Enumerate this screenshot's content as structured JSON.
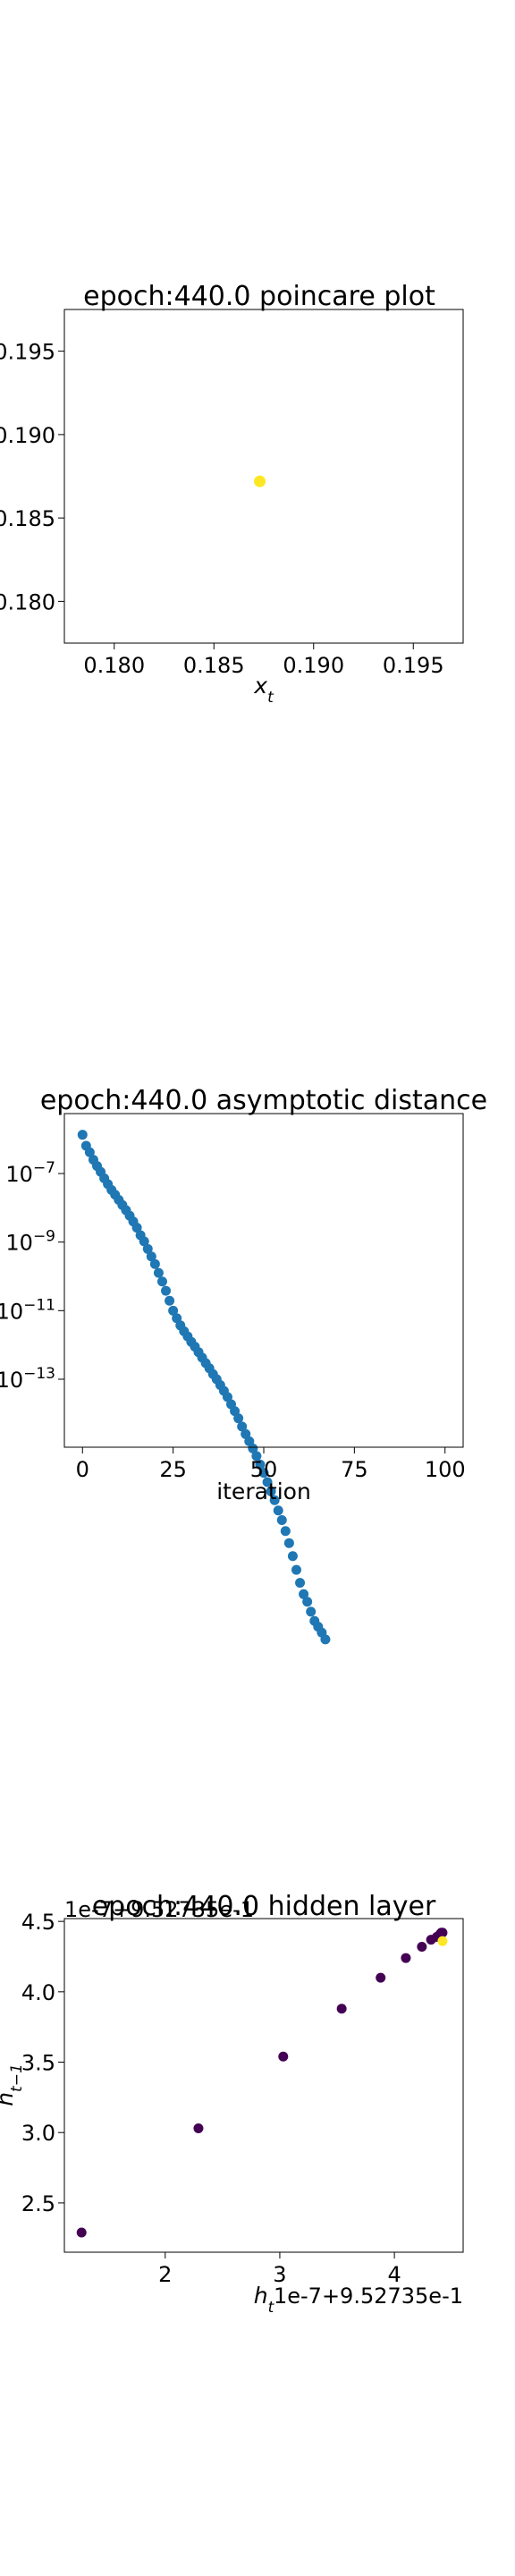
{
  "chart_data": [
    {
      "type": "scatter",
      "title": "epoch:440.0 poincare plot",
      "xlabel": "x_t",
      "ylabel": "",
      "xlim": [
        0.1775,
        0.1975
      ],
      "ylim": [
        0.1775,
        0.1975
      ],
      "xticks": [
        "0.180",
        "0.185",
        "0.190",
        "0.195"
      ],
      "yticks": [
        "0.180",
        "0.185",
        "0.190",
        "0.195"
      ],
      "points": [
        {
          "x": 0.1873,
          "y": 0.1872,
          "color": "#fde725"
        }
      ],
      "grid": false
    },
    {
      "type": "scatter",
      "title": "epoch:440.0 asymptotic distance",
      "xlabel": "iteration",
      "ylabel": "",
      "yscale": "log",
      "xlim": [
        -5,
        105
      ],
      "xticks": [
        "0",
        "25",
        "50",
        "75",
        "100"
      ],
      "yticks": [
        "10^{-7}",
        "10^{-9}",
        "10^{-11}",
        "10^{-13}"
      ],
      "color": "#1f77b4",
      "x": [
        0,
        1,
        2,
        3,
        4,
        5,
        6,
        7,
        8,
        9,
        10,
        11,
        12,
        13,
        14,
        15,
        16,
        17,
        18,
        19,
        20,
        21,
        22,
        23,
        24,
        25,
        26,
        27,
        28,
        29,
        30,
        31,
        32,
        33,
        34,
        35,
        36,
        37,
        38,
        39,
        40,
        41,
        42,
        43,
        44,
        45,
        46,
        47,
        48,
        49,
        50,
        51,
        52,
        53,
        54,
        55,
        56,
        57,
        58,
        59,
        60,
        61,
        62,
        63,
        64,
        65,
        66,
        67
      ],
      "log10_y": [
        -5.87,
        -6.19,
        -6.38,
        -6.6,
        -6.78,
        -6.95,
        -7.14,
        -7.31,
        -7.48,
        -7.62,
        -7.77,
        -7.92,
        -8.07,
        -8.23,
        -8.4,
        -8.58,
        -8.8,
        -8.98,
        -9.2,
        -9.42,
        -9.64,
        -9.9,
        -10.15,
        -10.42,
        -10.71,
        -11.0,
        -11.22,
        -11.43,
        -11.6,
        -11.75,
        -11.91,
        -12.05,
        -12.21,
        -12.37,
        -12.53,
        -12.68,
        -12.85,
        -13.0,
        -13.17,
        -13.34,
        -13.52,
        -13.73,
        -13.93,
        -14.14,
        -14.38,
        -14.6,
        -14.81,
        -15.02,
        -15.24,
        -15.49,
        -15.73,
        -16.0,
        -16.27,
        -16.53,
        -16.83,
        -17.11,
        -17.43,
        -17.78,
        -18.16,
        -18.56,
        -18.94,
        -19.27,
        -19.49,
        -19.78,
        -20.05,
        -20.22,
        -20.39,
        -20.59
      ]
    },
    {
      "type": "scatter",
      "title": "epoch:440.0 hidden layer",
      "xlabel": "h_t",
      "ylabel": "h_{t-1}",
      "x_offset_label": "1e-7+9.52735e-1",
      "y_offset_label": "1e-7+9.52735e-1",
      "xlim": [
        1.12,
        4.6
      ],
      "ylim": [
        2.15,
        4.52
      ],
      "xticks": [
        "2",
        "3",
        "4"
      ],
      "yticks": [
        "2.5",
        "3.0",
        "3.5",
        "4.0",
        "4.5"
      ],
      "x": [
        1.27,
        2.29,
        3.03,
        3.54,
        3.88,
        4.1,
        4.24,
        4.32,
        4.37,
        4.39,
        4.4,
        4.41,
        4.42,
        4.42
      ],
      "y": [
        2.29,
        3.03,
        3.54,
        3.88,
        4.1,
        4.24,
        4.32,
        4.37,
        4.39,
        4.4,
        4.41,
        4.42,
        4.42,
        4.36
      ],
      "colors": [
        "#440154",
        "#440154",
        "#440154",
        "#440154",
        "#440154",
        "#440154",
        "#440154",
        "#440154",
        "#440154",
        "#440154",
        "#440154",
        "#440154",
        "#440154",
        "#fde725"
      ]
    }
  ]
}
